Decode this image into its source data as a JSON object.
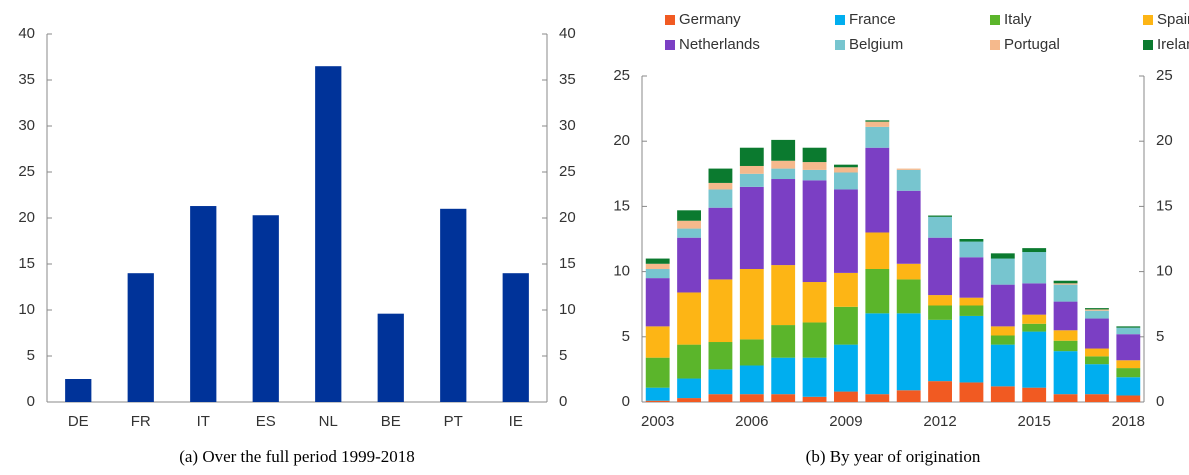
{
  "chart_data": [
    {
      "type": "bar",
      "caption": "(a) Over the full period 1999-2018",
      "categories": [
        "DE",
        "FR",
        "IT",
        "ES",
        "NL",
        "BE",
        "PT",
        "IE"
      ],
      "values": [
        2.5,
        14,
        21.3,
        20.3,
        36.5,
        9.6,
        21,
        14
      ],
      "color": "#003399",
      "ylim": [
        0,
        40
      ],
      "yticks": [
        0,
        5,
        10,
        15,
        20,
        25,
        30,
        35,
        40
      ],
      "y2lim": [
        0,
        40
      ],
      "y2ticks": [
        0,
        5,
        10,
        15,
        20,
        25,
        30,
        35,
        40
      ],
      "grid": false
    },
    {
      "type": "stacked-bar",
      "caption": "(b) By year of origination",
      "categories": [
        "2003",
        null,
        null,
        "2006",
        null,
        null,
        "2009",
        null,
        null,
        "2012",
        null,
        null,
        "2015",
        null,
        null,
        "2018"
      ],
      "series": [
        {
          "name": "Germany",
          "color": "#f15a22",
          "values": [
            0.1,
            0.3,
            0.6,
            0.6,
            0.6,
            0.4,
            0.8,
            0.6,
            0.9,
            1.6,
            1.5,
            1.2,
            1.1,
            0.6,
            0.6,
            0.5
          ]
        },
        {
          "name": "France",
          "color": "#00aeef",
          "values": [
            1.0,
            1.5,
            1.9,
            2.2,
            2.8,
            3.0,
            3.6,
            6.2,
            5.9,
            4.7,
            5.1,
            3.2,
            4.3,
            3.3,
            2.3,
            1.4
          ]
        },
        {
          "name": "Italy",
          "color": "#5bb52b",
          "values": [
            2.3,
            2.6,
            2.1,
            2.0,
            2.5,
            2.7,
            2.9,
            3.4,
            2.6,
            1.1,
            0.8,
            0.7,
            0.6,
            0.8,
            0.6,
            0.7
          ]
        },
        {
          "name": "Spain",
          "color": "#fdb515",
          "values": [
            2.4,
            4.0,
            4.8,
            5.4,
            4.6,
            3.1,
            2.6,
            2.8,
            1.2,
            0.8,
            0.6,
            0.7,
            0.7,
            0.8,
            0.6,
            0.6
          ]
        },
        {
          "name": "Netherlands",
          "color": "#7b3fc4",
          "values": [
            3.7,
            4.2,
            5.5,
            6.3,
            6.6,
            7.8,
            6.4,
            6.5,
            5.6,
            4.4,
            3.1,
            3.2,
            2.4,
            2.2,
            2.3,
            2.0
          ]
        },
        {
          "name": "Belgium",
          "color": "#77c5cf",
          "values": [
            0.7,
            0.7,
            1.4,
            1.0,
            0.8,
            0.8,
            1.3,
            1.6,
            1.6,
            1.6,
            1.2,
            2.0,
            2.4,
            1.3,
            0.6,
            0.5
          ]
        },
        {
          "name": "Portugal",
          "color": "#f5b98c",
          "values": [
            0.4,
            0.6,
            0.5,
            0.6,
            0.6,
            0.6,
            0.4,
            0.4,
            0.1,
            0,
            0,
            0,
            0,
            0.1,
            0.1,
            0
          ]
        },
        {
          "name": "Ireland",
          "color": "#0b7a2f",
          "values": [
            0.4,
            0.8,
            1.1,
            1.4,
            1.6,
            1.1,
            0.2,
            0.1,
            0,
            0.1,
            0.2,
            0.4,
            0.3,
            0.2,
            0.1,
            0.1
          ]
        }
      ],
      "ylim": [
        0,
        25
      ],
      "yticks": [
        0,
        5,
        10,
        15,
        20,
        25
      ],
      "y2lim": [
        0,
        25
      ],
      "y2ticks": [
        0,
        5,
        10,
        15,
        20,
        25
      ],
      "grid": false,
      "legend": "top"
    }
  ]
}
